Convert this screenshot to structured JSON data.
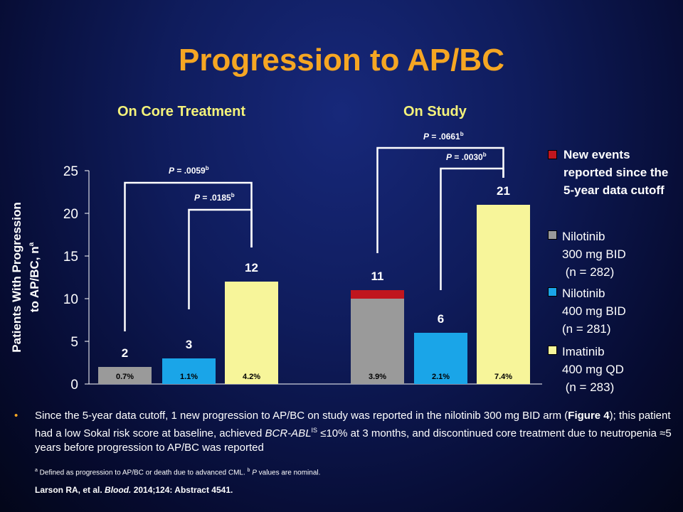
{
  "slide": {
    "title": "Progression to AP/BC"
  },
  "chart_data": {
    "type": "bar",
    "ylabel_line1": "Patients With Progression",
    "ylabel_line2_text": "to AP/BC, n",
    "ylabel_line2_sup": "a",
    "ylim": [
      0,
      25
    ],
    "yticks": [
      "0",
      "5",
      "10",
      "15",
      "20",
      "25"
    ],
    "groups": [
      "On Core Treatment",
      "On Study"
    ],
    "series": [
      {
        "name": "Nilotinib 300 mg BID (n = 282)",
        "color": "#9a9a9a"
      },
      {
        "name": "Nilotinib 400 mg BID (n = 281)",
        "color": "#1aa5e8"
      },
      {
        "name": "Imatinib 400 mg QD (n = 283)",
        "color": "#f7f59a"
      }
    ],
    "new_events_color": "#c0161e",
    "bars": [
      {
        "group": "On Core Treatment",
        "series": "Nilotinib 300 mg BID",
        "value": 2,
        "new_events": 0,
        "label": "2",
        "percent": "0.7%"
      },
      {
        "group": "On Core Treatment",
        "series": "Nilotinib 400 mg BID",
        "value": 3,
        "new_events": 0,
        "label": "3",
        "percent": "1.1%"
      },
      {
        "group": "On Core Treatment",
        "series": "Imatinib 400 mg QD",
        "value": 12,
        "new_events": 0,
        "label": "12",
        "percent": "4.2%"
      },
      {
        "group": "On Study",
        "series": "Nilotinib 300 mg BID",
        "value": 11,
        "new_events": 1,
        "label": "11",
        "percent": "3.9%"
      },
      {
        "group": "On Study",
        "series": "Nilotinib 400 mg BID",
        "value": 6,
        "new_events": 0,
        "label": "6",
        "percent": "2.1%"
      },
      {
        "group": "On Study",
        "series": "Imatinib 400 mg QD",
        "value": 21,
        "new_events": 0,
        "label": "21",
        "percent": "7.4%"
      }
    ],
    "brackets": [
      {
        "p": "P = .0059",
        "sup": "b",
        "from_bar": 0,
        "to_bar": 2
      },
      {
        "p": "P = .0185",
        "sup": "b",
        "from_bar": 1,
        "to_bar": 2
      },
      {
        "p": "P = .0661",
        "sup": "b",
        "from_bar": 3,
        "to_bar": 5
      },
      {
        "p": "P = .0030",
        "sup": "b",
        "from_bar": 4,
        "to_bar": 5
      }
    ]
  },
  "legend": {
    "new_events": "New events reported since the 5-year data cutoff",
    "items": [
      {
        "line1": "Nilotinib",
        "line2": "300 mg  BID",
        "line3": " (n = 282)"
      },
      {
        "line1": "Nilotinib",
        "line2": "400 mg  BID",
        "line3": "(n = 281)"
      },
      {
        "line1": "Imatinib",
        "line2": "400 mg  QD",
        "line3": " (n = 283)"
      }
    ]
  },
  "bullet": {
    "symbol": "•",
    "text1": "Since the 5-year data cutoff, 1 new progression to AP/BC on study was reported in the nilotinib 300 mg BID arm (",
    "figure_ref": "Figure 4",
    "text2": "); this patient had a low Sokal risk score at baseline, achieved ",
    "gene": "BCR-ABL",
    "gene_sup": "IS",
    "text3": " ≤10% at 3 months, and discontinued core treatment due to neutropenia ≈5 years before progression to AP/BC was reported"
  },
  "footnote": {
    "a_mark": "a",
    "a_text": " Defined as progression to AP/BC or death due to advanced  CML. ",
    "b_mark": "b",
    "b_p": "P",
    "b_text": " values  are nominal."
  },
  "citation": {
    "authors": "Larson RA, et al. ",
    "journal": "Blood.",
    "details": " 2014;124: Abstract 4541."
  }
}
